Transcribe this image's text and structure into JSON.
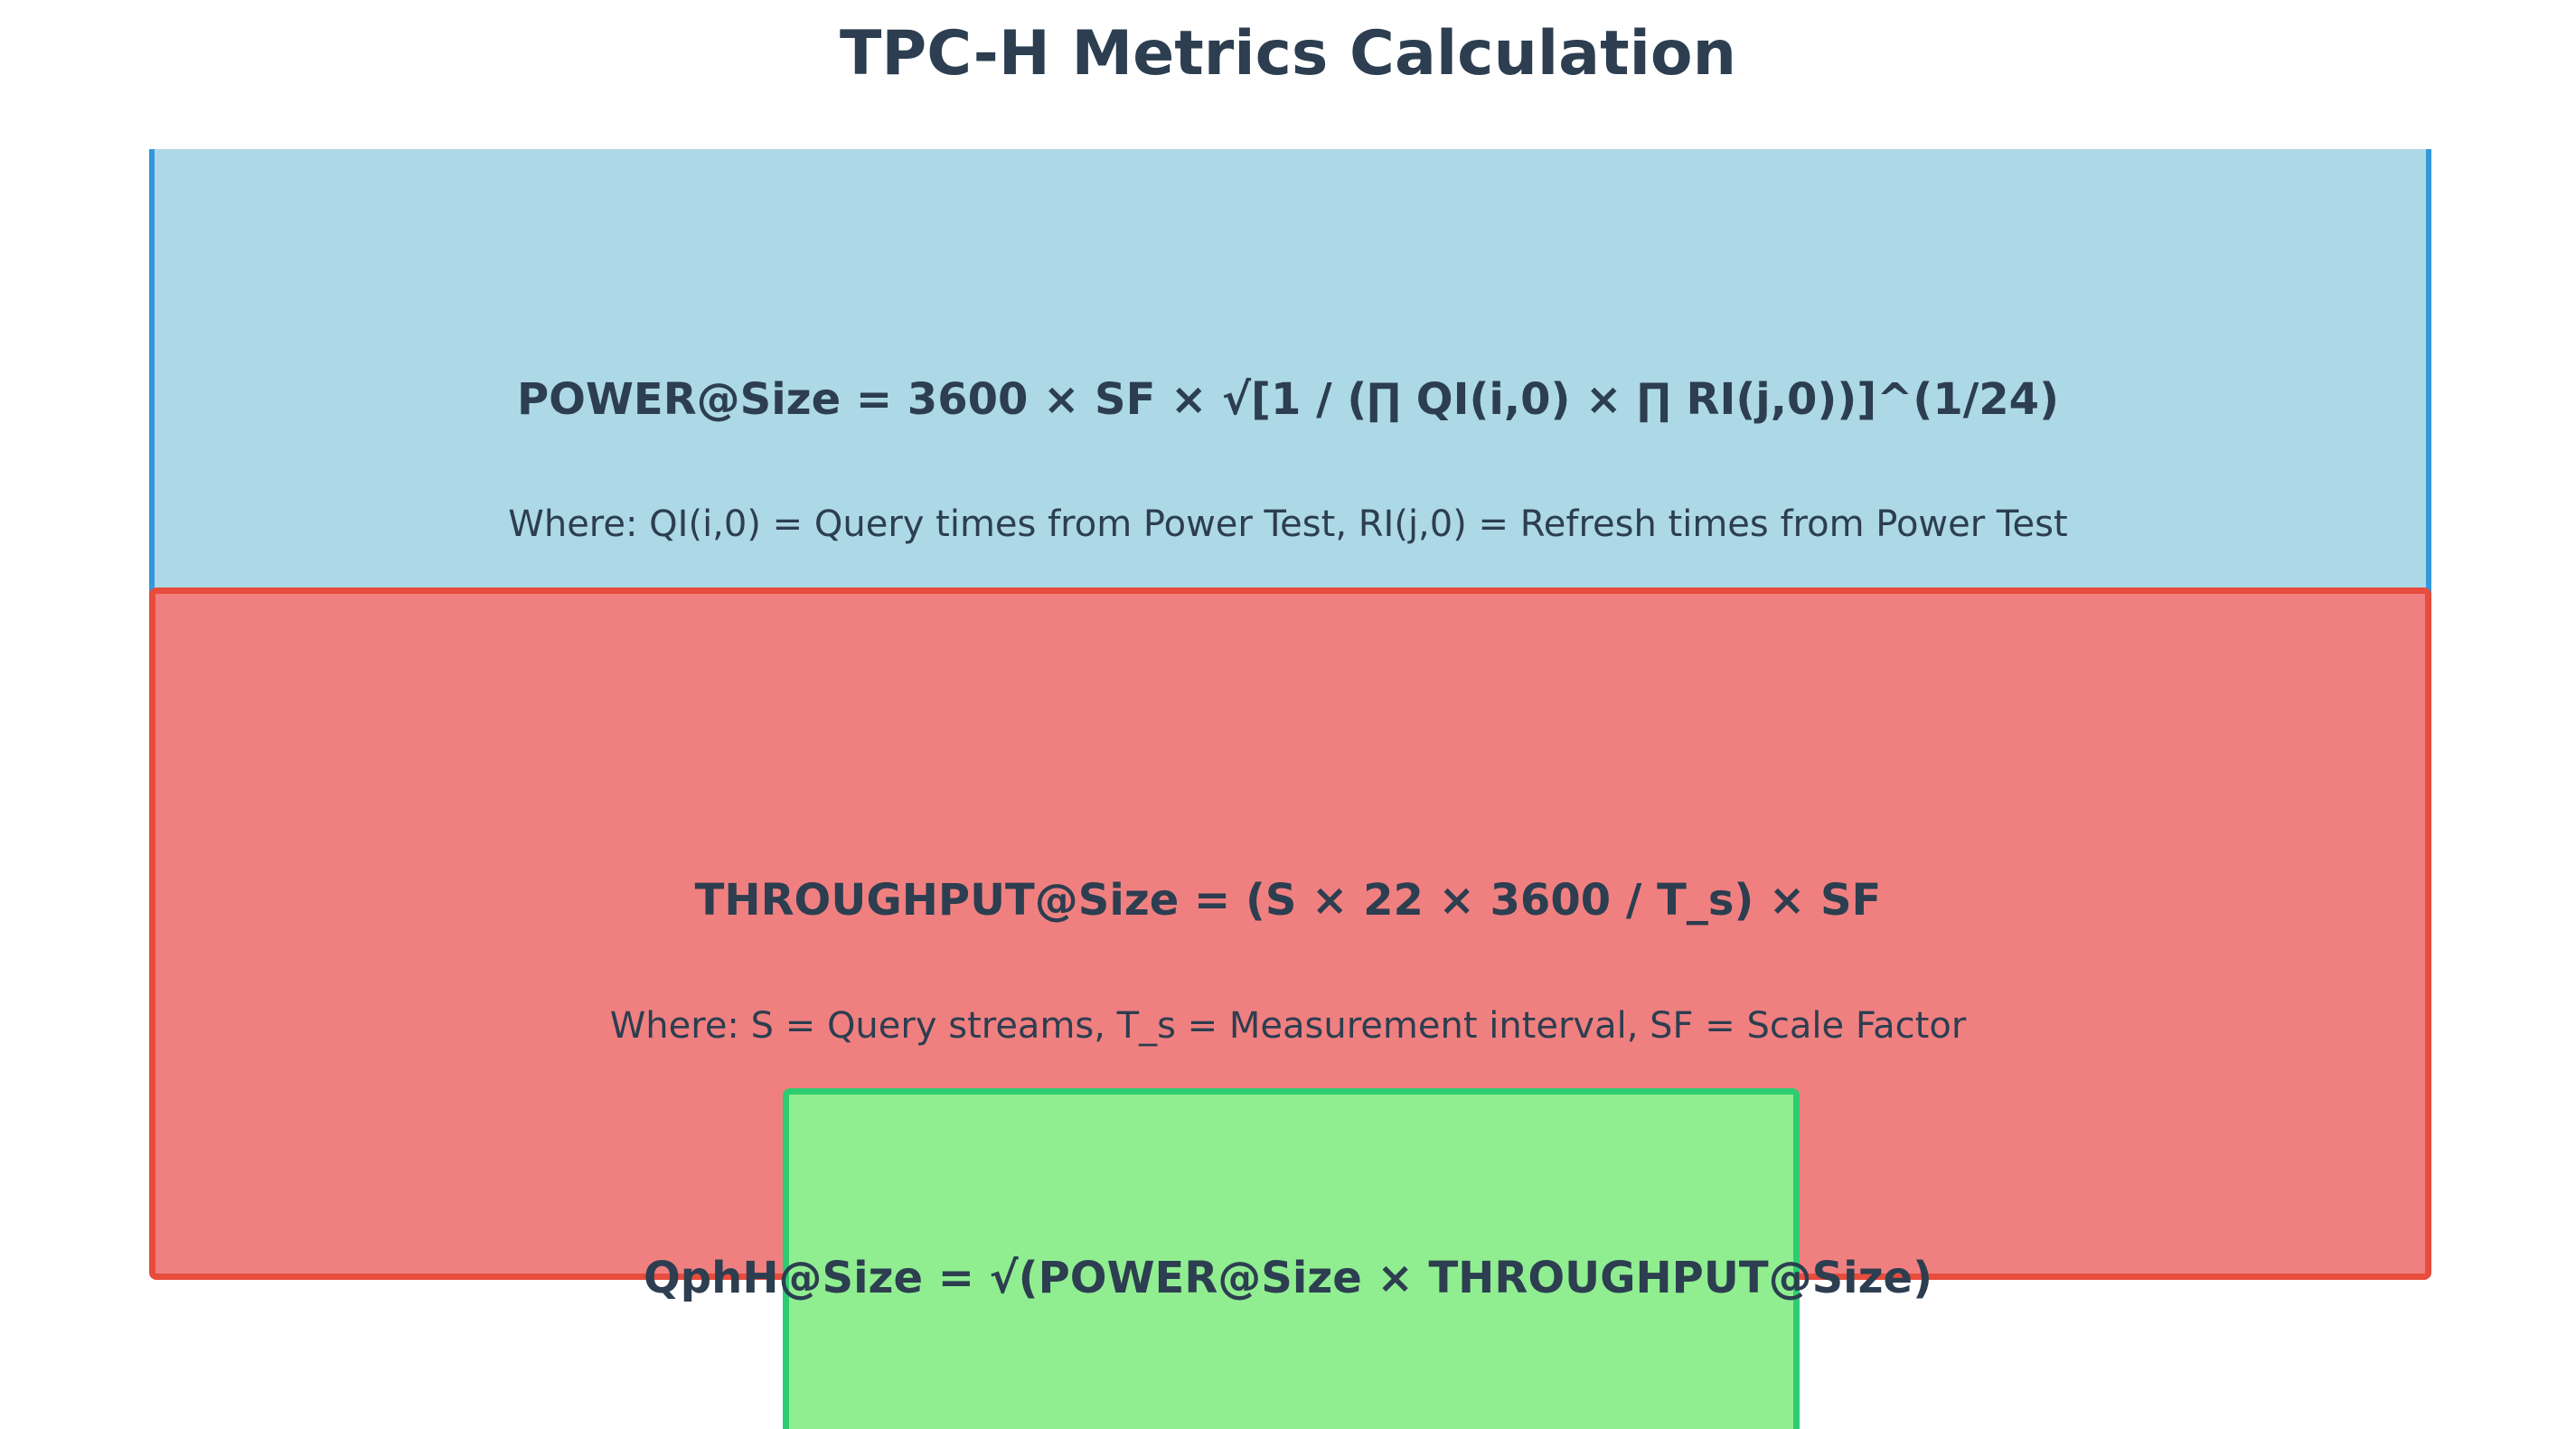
{
  "title": "TPC-H Metrics Calculation",
  "power": {
    "formula": "POWER@Size = 3600 × SF × √[1 / (∏ QI(i,0) × ∏ RI(j,0))]^(1/24)",
    "note": "Where: QI(i,0) = Query times from Power Test, RI(j,0) = Refresh times from Power Test"
  },
  "throughput": {
    "formula": "THROUGHPUT@Size = (S × 22 × 3600 / T_s) × SF",
    "note": "Where: S = Query streams, T_s = Measurement interval, SF = Scale Factor"
  },
  "qphh": {
    "formula": "QphH@Size = √(POWER@Size × THROUGHPUT@Size)"
  },
  "colors": {
    "power_fill": "#add8e6",
    "power_border": "#3498db",
    "throughput_fill": "#f08080",
    "throughput_border": "#e74c3c",
    "qphh_fill": "#90ee90",
    "qphh_border": "#2ecc71",
    "text": "#2c3e50"
  }
}
